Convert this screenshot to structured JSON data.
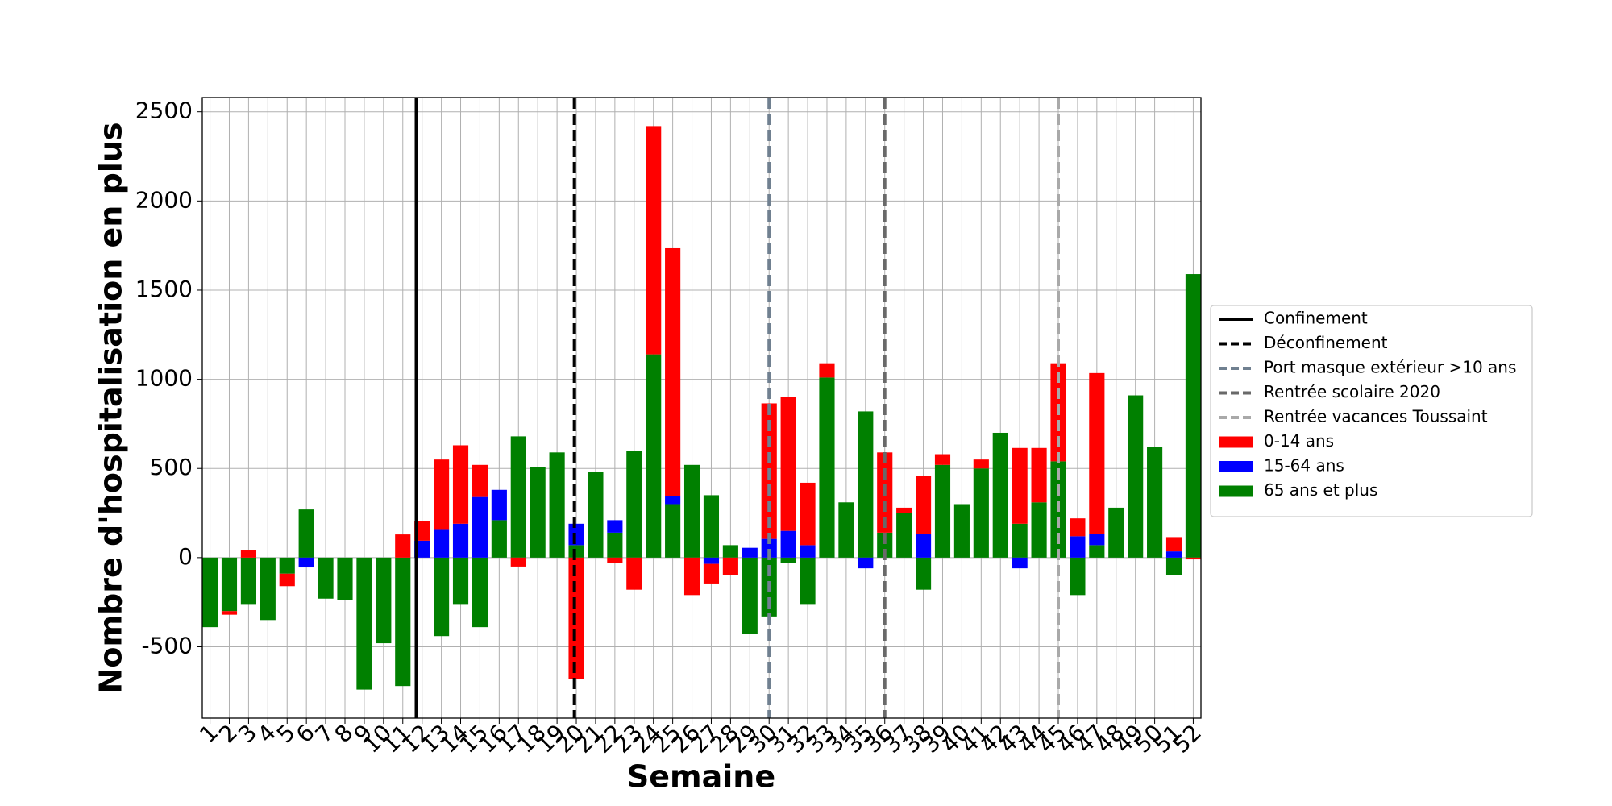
{
  "chart_data": {
    "type": "bar",
    "stacked": true,
    "xlabel": "Semaine",
    "ylabel": "Nombre d'hospitalisation en plus",
    "x": [
      1,
      2,
      3,
      4,
      5,
      6,
      7,
      8,
      9,
      10,
      11,
      12,
      13,
      14,
      15,
      16,
      17,
      18,
      19,
      20,
      21,
      22,
      23,
      24,
      25,
      26,
      27,
      28,
      29,
      30,
      31,
      32,
      33,
      34,
      35,
      36,
      37,
      38,
      39,
      40,
      41,
      42,
      43,
      44,
      45,
      46,
      47,
      48,
      49,
      50,
      51,
      52
    ],
    "xlim": [
      0.6,
      52.4
    ],
    "ylim": [
      -900,
      2580
    ],
    "yticks": [
      -500,
      0,
      500,
      1000,
      1500,
      2000,
      2500
    ],
    "grid": true,
    "legend": "right",
    "vlines": [
      {
        "x": 11.7,
        "label": "Confinement",
        "color": "#000000",
        "style": "solid"
      },
      {
        "x": 19.9,
        "label": "Déconfinement",
        "color": "#000000",
        "style": "dashed"
      },
      {
        "x": 30,
        "label": "Port masque extérieur >10 ans",
        "color": "#708090",
        "style": "dashed"
      },
      {
        "x": 36,
        "label": "Rentrée scolaire 2020",
        "color": "#696969",
        "style": "dashed"
      },
      {
        "x": 45,
        "label": "Rentrée vacances Toussaint",
        "color": "#a9a9a9",
        "style": "dashed"
      }
    ],
    "series": [
      {
        "name": "0-14 ans",
        "color": "#ff0000",
        "values": [
          0,
          -20,
          40,
          0,
          -70,
          0,
          0,
          0,
          0,
          0,
          130,
          110,
          390,
          440,
          180,
          0,
          -50,
          0,
          0,
          -680,
          0,
          -30,
          -180,
          1280,
          1390,
          -210,
          -110,
          -100,
          0,
          760,
          750,
          350,
          80,
          0,
          0,
          450,
          30,
          325,
          60,
          0,
          50,
          0,
          425,
          305,
          550,
          100,
          900,
          0,
          0,
          0,
          80,
          -10
        ]
      },
      {
        "name": "15-64 ans",
        "color": "#0000ff",
        "values": [
          0,
          0,
          0,
          0,
          0,
          -55,
          0,
          0,
          0,
          0,
          0,
          95,
          160,
          190,
          340,
          170,
          0,
          0,
          0,
          120,
          0,
          70,
          0,
          0,
          45,
          0,
          -35,
          0,
          55,
          105,
          150,
          70,
          0,
          0,
          -60,
          0,
          0,
          135,
          0,
          0,
          0,
          0,
          -60,
          0,
          0,
          120,
          65,
          0,
          0,
          0,
          35,
          0
        ]
      },
      {
        "name": "65 ans et plus",
        "color": "#008000",
        "values": [
          -390,
          -300,
          -260,
          -350,
          -90,
          270,
          -230,
          -240,
          -740,
          -480,
          -720,
          0,
          -440,
          -260,
          -390,
          210,
          680,
          510,
          590,
          70,
          480,
          140,
          600,
          1140,
          300,
          520,
          350,
          70,
          -430,
          -330,
          -30,
          -260,
          1010,
          310,
          820,
          140,
          250,
          -180,
          520,
          300,
          500,
          700,
          190,
          310,
          540,
          -210,
          70,
          280,
          910,
          620,
          -100,
          1590
        ]
      }
    ]
  }
}
